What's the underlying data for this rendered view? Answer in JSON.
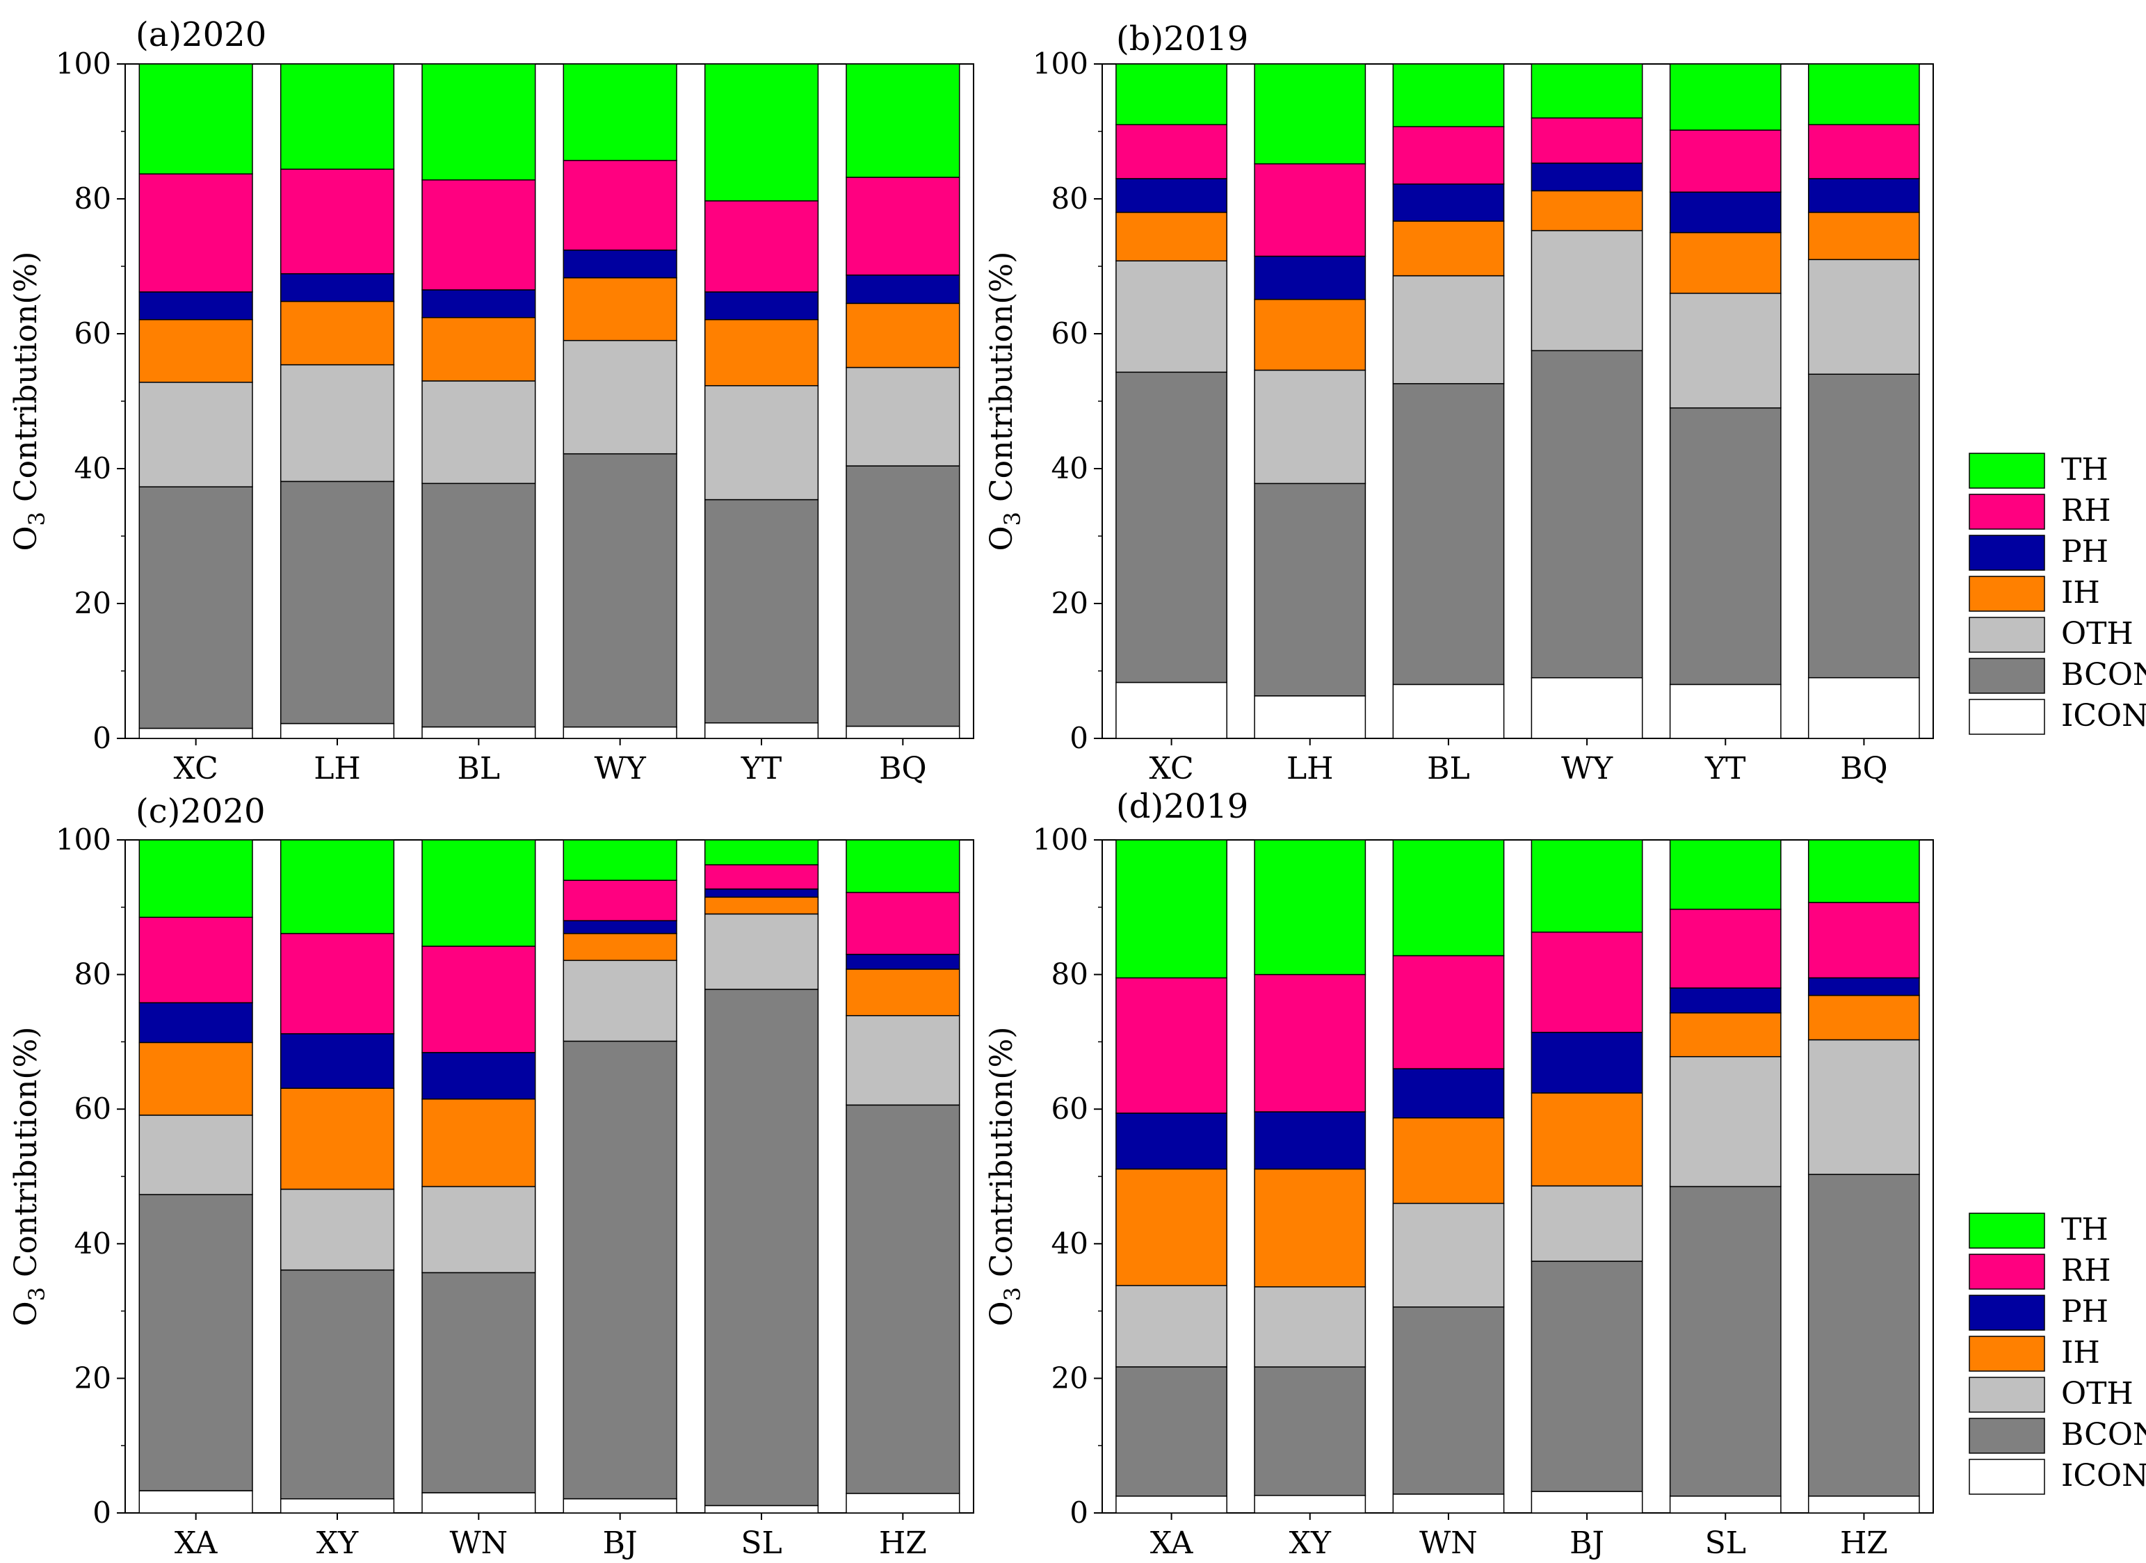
{
  "chart_data": [
    {
      "type": "bar",
      "stacked": true,
      "title": "(a)2020",
      "ylabel_base": "O",
      "ylabel_sub": "3",
      "ylabel_rest": " Contribution(%)",
      "ylim": [
        0,
        100
      ],
      "yticks": [
        0,
        20,
        40,
        60,
        80,
        100
      ],
      "categories": [
        "XC",
        "LH",
        "BL",
        "WY",
        "YT",
        "BQ"
      ],
      "series": [
        {
          "name": "ICON",
          "values": [
            1.5,
            2.2,
            1.7,
            1.7,
            2.3,
            1.8
          ]
        },
        {
          "name": "BCON",
          "values": [
            35.8,
            35.9,
            36.1,
            40.5,
            33.1,
            38.6
          ]
        },
        {
          "name": "OTH",
          "values": [
            15.5,
            17.3,
            15.2,
            16.8,
            16.9,
            14.6
          ]
        },
        {
          "name": "IH",
          "values": [
            9.3,
            9.4,
            9.4,
            9.3,
            9.8,
            9.5
          ]
        },
        {
          "name": "PH",
          "values": [
            4.1,
            4.1,
            4.1,
            4.1,
            4.1,
            4.2
          ]
        },
        {
          "name": "RH",
          "values": [
            17.5,
            15.5,
            16.3,
            13.3,
            13.5,
            14.5
          ]
        },
        {
          "name": "TH",
          "values": [
            16.3,
            15.6,
            17.2,
            14.3,
            20.3,
            16.8
          ]
        }
      ]
    },
    {
      "type": "bar",
      "stacked": true,
      "title": "(b)2019",
      "ylabel_base": "O",
      "ylabel_sub": "3",
      "ylabel_rest": " Contribution(%)",
      "ylim": [
        0,
        100
      ],
      "yticks": [
        0,
        20,
        40,
        60,
        80,
        100
      ],
      "categories": [
        "XC",
        "LH",
        "BL",
        "WY",
        "YT",
        "BQ"
      ],
      "series": [
        {
          "name": "ICON",
          "values": [
            8.3,
            6.3,
            8.0,
            9.0,
            8.0,
            9.0
          ]
        },
        {
          "name": "BCON",
          "values": [
            46.0,
            31.5,
            44.6,
            48.5,
            41.0,
            45.0
          ]
        },
        {
          "name": "OTH",
          "values": [
            16.5,
            16.8,
            16.0,
            17.8,
            17.0,
            17.0
          ]
        },
        {
          "name": "IH",
          "values": [
            7.2,
            10.5,
            8.1,
            5.9,
            9.0,
            7.0
          ]
        },
        {
          "name": "PH",
          "values": [
            5.0,
            6.4,
            5.5,
            4.1,
            6.0,
            5.0
          ]
        },
        {
          "name": "RH",
          "values": [
            8.0,
            13.7,
            8.5,
            6.7,
            9.2,
            8.0
          ]
        },
        {
          "name": "TH",
          "values": [
            9.0,
            14.8,
            9.3,
            8.0,
            9.8,
            9.0
          ]
        }
      ]
    },
    {
      "type": "bar",
      "stacked": true,
      "title": "(c)2020",
      "ylabel_base": "O",
      "ylabel_sub": "3",
      "ylabel_rest": " Contribution(%)",
      "ylim": [
        0,
        100
      ],
      "yticks": [
        0,
        20,
        40,
        60,
        80,
        100
      ],
      "categories": [
        "XA",
        "XY",
        "WN",
        "BJ",
        "SL",
        "HZ"
      ],
      "series": [
        {
          "name": "ICON",
          "values": [
            3.3,
            2.1,
            3.0,
            2.1,
            1.1,
            2.9
          ]
        },
        {
          "name": "BCON",
          "values": [
            44.0,
            34.0,
            32.7,
            68.0,
            76.7,
            57.7
          ]
        },
        {
          "name": "OTH",
          "values": [
            11.8,
            12.0,
            12.8,
            12.0,
            11.2,
            13.3
          ]
        },
        {
          "name": "IH",
          "values": [
            10.8,
            15.0,
            13.0,
            4.0,
            2.5,
            6.9
          ]
        },
        {
          "name": "PH",
          "values": [
            5.9,
            8.1,
            6.9,
            1.9,
            1.2,
            2.2
          ]
        },
        {
          "name": "RH",
          "values": [
            12.7,
            14.9,
            15.8,
            6.0,
            3.6,
            9.2
          ]
        },
        {
          "name": "TH",
          "values": [
            11.5,
            13.9,
            15.8,
            6.0,
            3.7,
            7.8
          ]
        }
      ]
    },
    {
      "type": "bar",
      "stacked": true,
      "title": "(d)2019",
      "ylabel_base": "O",
      "ylabel_sub": "3",
      "ylabel_rest": " Contribution(%)",
      "ylim": [
        0,
        100
      ],
      "yticks": [
        0,
        20,
        40,
        60,
        80,
        100
      ],
      "categories": [
        "XA",
        "XY",
        "WN",
        "BJ",
        "SL",
        "HZ"
      ],
      "series": [
        {
          "name": "ICON",
          "values": [
            2.5,
            2.6,
            2.8,
            3.2,
            2.5,
            2.5
          ]
        },
        {
          "name": "BCON",
          "values": [
            19.2,
            19.1,
            27.8,
            34.2,
            46.0,
            47.8
          ]
        },
        {
          "name": "OTH",
          "values": [
            12.1,
            11.9,
            15.4,
            11.2,
            19.3,
            20.0
          ]
        },
        {
          "name": "IH",
          "values": [
            17.3,
            17.5,
            12.7,
            13.8,
            6.5,
            6.6
          ]
        },
        {
          "name": "PH",
          "values": [
            8.3,
            8.5,
            7.3,
            9.0,
            3.7,
            2.6
          ]
        },
        {
          "name": "RH",
          "values": [
            20.1,
            20.4,
            16.8,
            14.9,
            11.7,
            11.2
          ]
        },
        {
          "name": "TH",
          "values": [
            20.5,
            20.0,
            17.2,
            13.7,
            10.3,
            9.3
          ]
        }
      ]
    }
  ],
  "legend_order": [
    "TH",
    "RH",
    "PH",
    "IH",
    "OTH",
    "BCON",
    "ICON"
  ],
  "colors": {
    "TH": "#00ff00",
    "RH": "#ff0080",
    "PH": "#0000a0",
    "IH": "#ff8000",
    "OTH": "#c0c0c0",
    "BCON": "#808080",
    "ICON": "#ffffff"
  }
}
